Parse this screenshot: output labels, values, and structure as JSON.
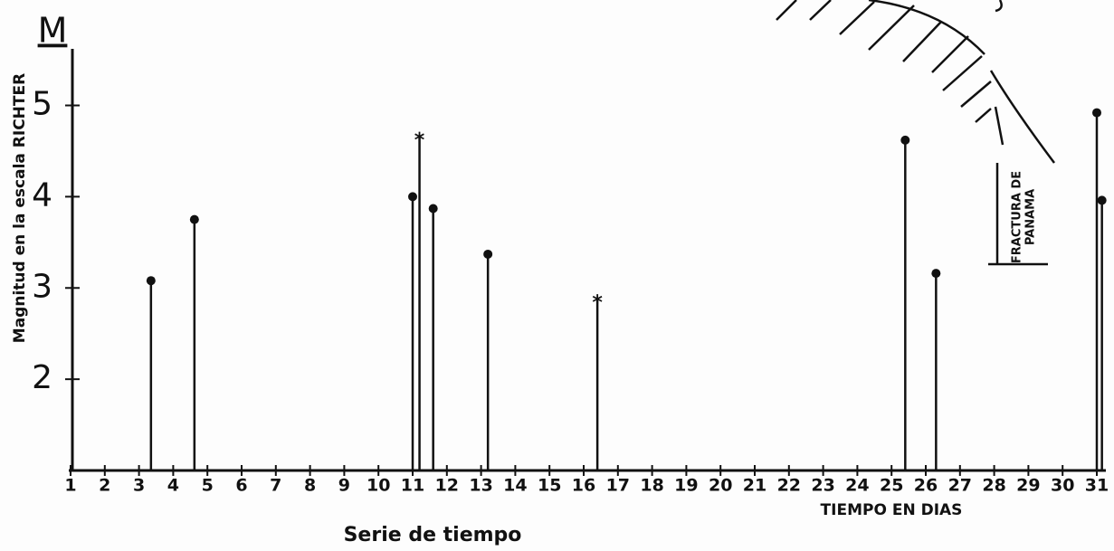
{
  "chart_data": {
    "type": "stem",
    "axis_symbol": "M",
    "y_label": "Magnitud en la escala RICHTER",
    "x_label": "Serie de tiempo",
    "x_unit_label": "TIEMPO EN DIAS",
    "annotations": [
      "FRACTURA DE",
      "PANAMA"
    ],
    "series": [
      {
        "marker": "dot",
        "color": "#111111",
        "x": [
          3.35,
          4.62,
          11.0,
          11.6,
          13.2,
          25.4,
          26.3,
          31.0,
          31.15
        ],
        "values": [
          3.08,
          3.75,
          4.0,
          3.87,
          3.37,
          4.62,
          3.16,
          4.92,
          3.96
        ]
      },
      {
        "marker": "star",
        "color": "#111111",
        "x": [
          11.2,
          16.4
        ],
        "values": [
          4.65,
          2.87
        ]
      }
    ],
    "xlim": [
      1,
      31
    ],
    "xticks": [
      1,
      2,
      3,
      4,
      5,
      6,
      7,
      8,
      9,
      10,
      11,
      12,
      13,
      14,
      15,
      16,
      17,
      18,
      19,
      20,
      21,
      22,
      23,
      24,
      25,
      26,
      27,
      28,
      29,
      30,
      31
    ],
    "ylim": [
      1,
      5.6
    ],
    "yticks": [
      2,
      3,
      4,
      5
    ]
  }
}
